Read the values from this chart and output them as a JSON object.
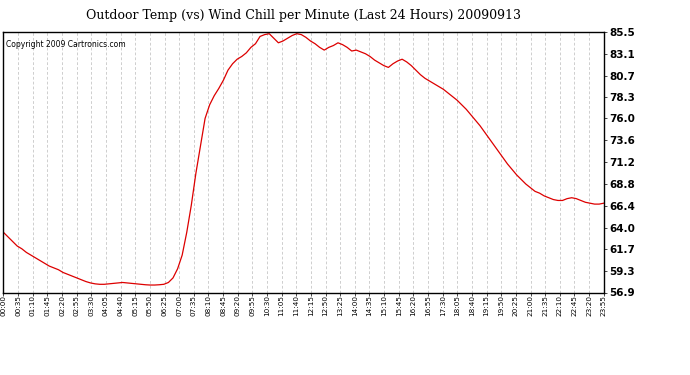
{
  "title": "Outdoor Temp (vs) Wind Chill per Minute (Last 24 Hours) 20090913",
  "copyright_text": "Copyright 2009 Cartronics.com",
  "line_color": "#dd0000",
  "background_color": "#ffffff",
  "grid_color": "#bbbbbb",
  "ylim_min": 56.9,
  "ylim_max": 85.5,
  "yticks": [
    56.9,
    59.3,
    61.7,
    64.0,
    66.4,
    68.8,
    71.2,
    73.6,
    76.0,
    78.3,
    80.7,
    83.1,
    85.5
  ],
  "xtick_labels": [
    "00:00",
    "00:35",
    "01:10",
    "01:45",
    "02:20",
    "02:55",
    "03:30",
    "04:05",
    "04:40",
    "05:15",
    "05:50",
    "06:25",
    "07:00",
    "07:35",
    "08:10",
    "08:45",
    "09:20",
    "09:55",
    "10:30",
    "11:05",
    "11:40",
    "12:15",
    "12:50",
    "13:25",
    "14:00",
    "14:35",
    "15:10",
    "15:45",
    "16:20",
    "16:55",
    "17:30",
    "18:05",
    "18:40",
    "19:15",
    "19:50",
    "20:25",
    "21:00",
    "21:35",
    "22:10",
    "22:45",
    "23:20",
    "23:55"
  ],
  "data_y": [
    63.5,
    63.0,
    62.5,
    62.0,
    61.7,
    61.3,
    61.0,
    60.7,
    60.4,
    60.1,
    59.8,
    59.6,
    59.4,
    59.1,
    58.9,
    58.7,
    58.5,
    58.3,
    58.1,
    57.95,
    57.85,
    57.8,
    57.8,
    57.85,
    57.9,
    57.95,
    58.0,
    57.95,
    57.9,
    57.85,
    57.8,
    57.75,
    57.72,
    57.72,
    57.75,
    57.8,
    58.0,
    58.5,
    59.5,
    61.0,
    63.5,
    66.5,
    70.0,
    73.0,
    76.0,
    77.5,
    78.5,
    79.3,
    80.2,
    81.3,
    82.0,
    82.5,
    82.8,
    83.2,
    83.8,
    84.2,
    85.0,
    85.2,
    85.3,
    84.8,
    84.3,
    84.5,
    84.8,
    85.1,
    85.3,
    85.2,
    84.9,
    84.5,
    84.2,
    83.8,
    83.5,
    83.8,
    84.0,
    84.3,
    84.1,
    83.8,
    83.4,
    83.5,
    83.3,
    83.1,
    82.8,
    82.4,
    82.1,
    81.8,
    81.6,
    82.0,
    82.3,
    82.5,
    82.2,
    81.8,
    81.3,
    80.8,
    80.4,
    80.1,
    79.8,
    79.5,
    79.2,
    78.8,
    78.4,
    78.0,
    77.5,
    77.0,
    76.4,
    75.8,
    75.2,
    74.5,
    73.8,
    73.1,
    72.4,
    71.7,
    71.0,
    70.4,
    69.8,
    69.3,
    68.8,
    68.4,
    68.0,
    67.8,
    67.5,
    67.3,
    67.1,
    67.0,
    67.0,
    67.2,
    67.3,
    67.2,
    67.0,
    66.8,
    66.7,
    66.6,
    66.6,
    66.7
  ]
}
